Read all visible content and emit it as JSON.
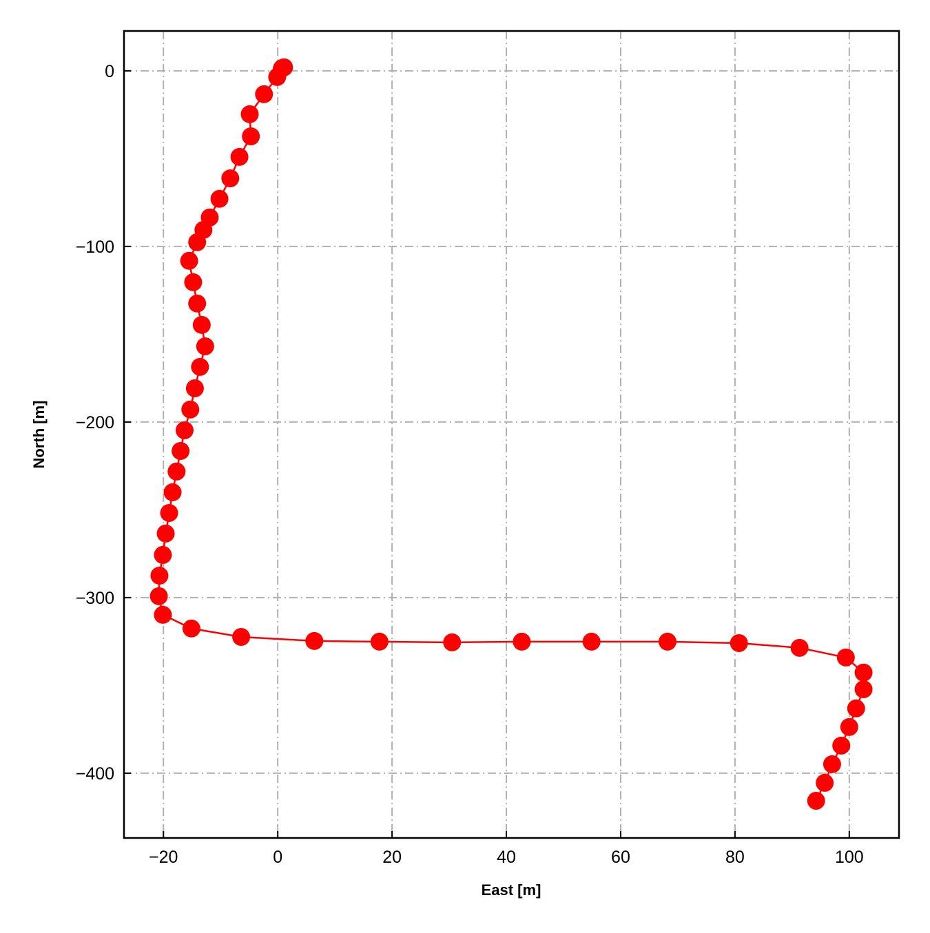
{
  "chart_data": {
    "type": "line",
    "xlabel": "East [m]",
    "ylabel": "North [m]",
    "color": "#ff0000",
    "grid": true,
    "x": [
      1.1,
      0.8,
      0.7,
      -0.1,
      -2.4,
      -4.9,
      -4.7,
      -6.7,
      -8.3,
      -10.2,
      -11.9,
      -13.0,
      -14.1,
      -15.5,
      -14.8,
      -14.1,
      -13.3,
      -12.7,
      -13.6,
      -14.5,
      -15.3,
      -16.3,
      -17.0,
      -17.7,
      -18.4,
      -19.0,
      -19.6,
      -20.1,
      -20.7,
      -20.8,
      -20.1,
      -15.1,
      -6.4,
      6.4,
      17.8,
      30.5,
      42.7,
      54.9,
      68.2,
      80.7,
      91.3,
      99.4,
      102.5,
      102.5,
      101.2,
      100.0,
      98.6,
      97.0,
      95.7,
      94.2
    ],
    "values": [
      2.0,
      1.6,
      1.2,
      -3.5,
      -13.3,
      -24.7,
      -37.3,
      -49.0,
      -61.2,
      -72.9,
      -83.5,
      -90.6,
      -97.6,
      -108.2,
      -120.4,
      -132.5,
      -144.7,
      -156.9,
      -168.6,
      -180.8,
      -192.9,
      -204.7,
      -216.5,
      -228.2,
      -240.0,
      -251.8,
      -263.5,
      -275.7,
      -287.5,
      -299.2,
      -309.8,
      -317.6,
      -322.4,
      -324.7,
      -325.1,
      -325.5,
      -325.1,
      -325.1,
      -325.1,
      -325.9,
      -328.6,
      -334.1,
      -342.7,
      -352.2,
      -363.1,
      -373.7,
      -384.3,
      -394.9,
      -405.5,
      -415.7
    ],
    "xlim": [
      -26.9,
      108.7
    ],
    "ylim": [
      -436.9,
      22.7
    ],
    "xticks": [
      {
        "value": -20,
        "label": "−20"
      },
      0,
      20,
      40,
      60,
      80,
      100
    ],
    "yticks": [
      {
        "value": -400,
        "label": "−400"
      },
      {
        "value": -300,
        "label": "−300"
      },
      {
        "value": -200,
        "label": "−200"
      },
      {
        "value": -100,
        "label": "−100"
      },
      0
    ]
  }
}
